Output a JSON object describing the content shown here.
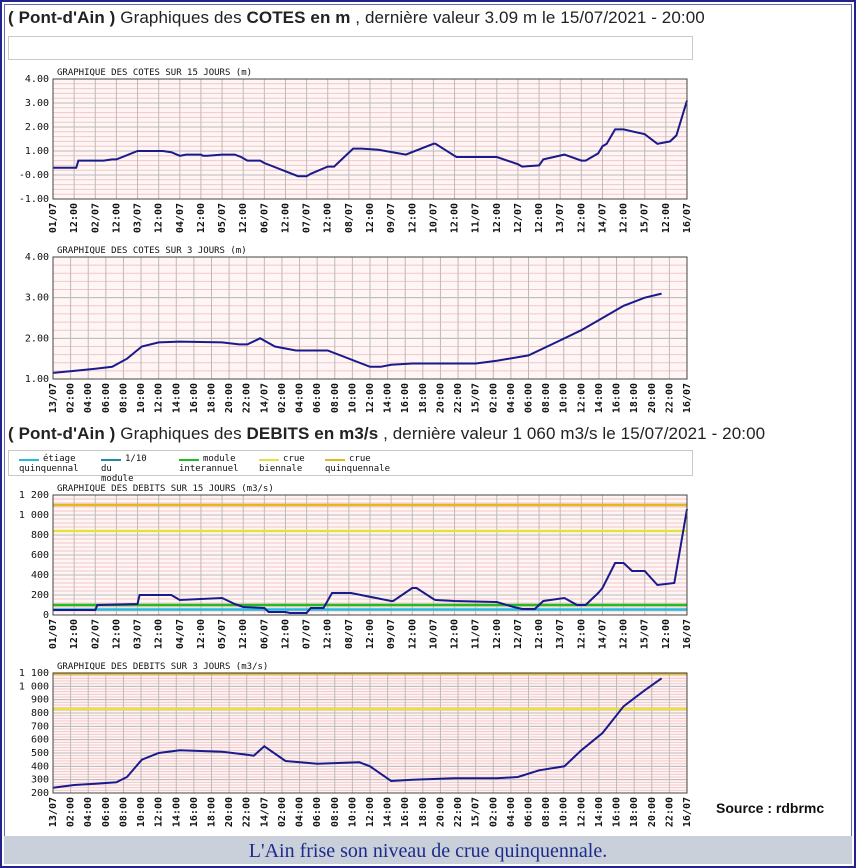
{
  "header_cotes": {
    "station": "( Pont-d'Ain )",
    "prefix": "Graphiques des",
    "quantity": "COTES en m",
    "suffix": ", dernière valeur 3.09 m le 15/07/2021 - 20:00"
  },
  "header_debits": {
    "station": "( Pont-d'Ain )",
    "prefix": "Graphiques des",
    "quantity": "DEBITS en m3/s",
    "suffix": ", dernière valeur 1 060 m3/s le 15/07/2021 - 20:00"
  },
  "legend": [
    {
      "l1": "étiage",
      "l2": "quinquennal",
      "color": "#22bbdd"
    },
    {
      "l1": "1/10",
      "l2": "du module",
      "color": "#2288aa"
    },
    {
      "l1": "module",
      "l2": "interannuel",
      "color": "#22bb22"
    },
    {
      "l1": "crue",
      "l2": "biennale",
      "color": "#e8e040"
    },
    {
      "l1": "crue",
      "l2": "quinquennale",
      "color": "#e0b820"
    }
  ],
  "source": "Source : rdbrmc",
  "caption": "L'Ain frise son niveau de crue quinquennale.",
  "colors": {
    "series": "#1a1a8c",
    "grid": "#bbbbbb",
    "frame": "#23238c"
  },
  "chart_data": [
    {
      "type": "line",
      "title": "GRAPHIQUE DES COTES SUR 15 JOURS (m)",
      "ylim": [
        -1,
        4
      ],
      "yticks": [
        -1,
        0,
        1,
        2,
        3,
        4
      ],
      "ytick_labels": [
        "-1.00",
        "-0.00",
        "1.00",
        "2.00",
        "3.00",
        "4.00"
      ],
      "xlim": [
        0,
        15
      ],
      "xtick_labels": [
        "01/07",
        "12:00",
        "02/07",
        "12:00",
        "03/07",
        "12:00",
        "04/07",
        "12:00",
        "05/07",
        "12:00",
        "06/07",
        "12:00",
        "07/07",
        "12:00",
        "08/07",
        "12:00",
        "09/07",
        "12:00",
        "10/07",
        "12:00",
        "11/07",
        "12:00",
        "12/07",
        "12:00",
        "13/07",
        "12:00",
        "14/07",
        "12:00",
        "15/07",
        "12:00",
        "16/07"
      ],
      "thresholds": [],
      "series": [
        {
          "x": [
            0,
            0.55,
            0.6,
            1.2,
            1.4,
            1.5,
            2,
            2.05,
            2.6,
            2.8,
            3,
            3.15,
            3.5,
            3.55,
            3.65,
            4,
            4.3,
            4.45,
            4.6,
            4.9,
            5,
            5.8,
            6,
            6.1,
            6.5,
            6.65,
            7.1,
            7.2,
            7.3,
            7.7,
            8.35,
            9,
            9.05,
            9.5,
            9.55,
            10.5,
            11,
            11.1,
            11.5,
            11.6,
            12.1,
            12.5,
            12.6,
            12.9,
            13,
            13.1,
            13.3,
            13.5,
            14,
            14.3,
            14.6,
            14.75,
            15
          ],
          "y": [
            0.3,
            0.3,
            0.6,
            0.6,
            0.65,
            0.65,
            1,
            1,
            1,
            0.95,
            0.8,
            0.85,
            0.85,
            0.8,
            0.8,
            0.85,
            0.85,
            0.75,
            0.6,
            0.6,
            0.5,
            -0.05,
            -0.05,
            0.05,
            0.35,
            0.35,
            1.1,
            1.1,
            1.1,
            1.05,
            0.85,
            1.3,
            1.3,
            0.8,
            0.75,
            0.75,
            0.45,
            0.35,
            0.4,
            0.65,
            0.85,
            0.6,
            0.6,
            0.9,
            1.2,
            1.3,
            1.9,
            1.9,
            1.7,
            1.3,
            1.4,
            1.65,
            3.1
          ]
        }
      ]
    },
    {
      "type": "line",
      "title": "GRAPHIQUE DES COTES SUR 3 JOURS (m)",
      "ylim": [
        1,
        4
      ],
      "yticks": [
        1,
        2,
        3,
        4
      ],
      "ytick_labels": [
        "1.00",
        "2.00",
        "3.00",
        "4.00"
      ],
      "xlim": [
        0,
        3
      ],
      "xtick_labels": [
        "13/07",
        "02:00",
        "04:00",
        "06:00",
        "08:00",
        "10:00",
        "12:00",
        "14:00",
        "16:00",
        "18:00",
        "20:00",
        "22:00",
        "14/07",
        "02:00",
        "04:00",
        "06:00",
        "08:00",
        "10:00",
        "12:00",
        "14:00",
        "16:00",
        "18:00",
        "20:00",
        "22:00",
        "15/07",
        "02:00",
        "04:00",
        "06:00",
        "08:00",
        "10:00",
        "12:00",
        "14:00",
        "16:00",
        "18:00",
        "20:00",
        "22:00",
        "16/07"
      ],
      "thresholds": [],
      "series": [
        {
          "x": [
            0,
            0.1,
            0.2,
            0.28,
            0.35,
            0.42,
            0.5,
            0.6,
            0.8,
            0.88,
            0.92,
            0.98,
            1.05,
            1.15,
            1.3,
            1.5,
            1.55,
            1.6,
            1.7,
            1.8,
            2,
            2.1,
            2.25,
            2.4,
            2.5,
            2.6,
            2.7,
            2.8,
            2.88
          ],
          "y": [
            1.15,
            1.2,
            1.25,
            1.3,
            1.5,
            1.8,
            1.9,
            1.92,
            1.9,
            1.85,
            1.85,
            2,
            1.8,
            1.7,
            1.7,
            1.3,
            1.3,
            1.35,
            1.38,
            1.38,
            1.38,
            1.45,
            1.58,
            1.95,
            2.2,
            2.5,
            2.8,
            3,
            3.1
          ]
        }
      ]
    },
    {
      "type": "line",
      "title": "GRAPHIQUE DES DEBITS SUR 15 JOURS (m3/s)",
      "ylim": [
        0,
        1200
      ],
      "yticks": [
        0,
        200,
        400,
        600,
        800,
        1000,
        1200
      ],
      "ytick_labels": [
        "0",
        "200",
        "400",
        "600",
        "800",
        "1 000",
        "1 200"
      ],
      "xlim": [
        0,
        15
      ],
      "xtick_labels": [
        "01/07",
        "12:00",
        "02/07",
        "12:00",
        "03/07",
        "12:00",
        "04/07",
        "12:00",
        "05/07",
        "12:00",
        "06/07",
        "12:00",
        "07/07",
        "12:00",
        "08/07",
        "12:00",
        "09/07",
        "12:00",
        "10/07",
        "12:00",
        "11/07",
        "12:00",
        "12/07",
        "12:00",
        "13/07",
        "12:00",
        "14/07",
        "12:00",
        "15/07",
        "12:00",
        "16/07"
      ],
      "thresholds": [
        {
          "value": 55,
          "color": "#22bbdd"
        },
        {
          "value": 100,
          "color": "#22bb22"
        },
        {
          "value": 840,
          "color": "#e8e040"
        },
        {
          "value": 1100,
          "color": "#e0b820"
        }
      ],
      "series": [
        {
          "x": [
            0,
            1,
            1.05,
            2,
            2.05,
            2.8,
            3,
            4,
            4.3,
            4.5,
            5,
            5.1,
            5.5,
            5.6,
            6,
            6.1,
            6.4,
            6.6,
            7,
            7.05,
            8,
            8.05,
            8.5,
            8.6,
            9,
            9.05,
            9.5,
            10.5,
            10.9,
            11.1,
            11.4,
            11.6,
            12.1,
            12.4,
            12.6,
            12.9,
            13,
            13.3,
            13.5,
            13.7,
            14,
            14.3,
            14.7,
            15
          ],
          "y": [
            50,
            50,
            100,
            110,
            200,
            200,
            150,
            170,
            110,
            80,
            70,
            30,
            30,
            20,
            20,
            70,
            70,
            220,
            220,
            220,
            140,
            140,
            270,
            270,
            160,
            150,
            140,
            130,
            80,
            60,
            60,
            140,
            170,
            100,
            100,
            220,
            270,
            520,
            520,
            440,
            440,
            300,
            320,
            1060
          ]
        }
      ]
    },
    {
      "type": "line",
      "title": "GRAPHIQUE DES DEBITS SUR 3 JOURS (m3/s)",
      "ylim": [
        200,
        1100
      ],
      "yticks": [
        200,
        300,
        400,
        500,
        600,
        700,
        800,
        900,
        1000,
        1100
      ],
      "ytick_labels": [
        "200",
        "300",
        "400",
        "500",
        "600",
        "700",
        "800",
        "900",
        "1 000",
        "1 100"
      ],
      "xlim": [
        0,
        3
      ],
      "xtick_labels": [
        "13/07",
        "02:00",
        "04:00",
        "06:00",
        "08:00",
        "10:00",
        "12:00",
        "14:00",
        "16:00",
        "18:00",
        "20:00",
        "22:00",
        "14/07",
        "02:00",
        "04:00",
        "06:00",
        "08:00",
        "10:00",
        "12:00",
        "14:00",
        "16:00",
        "18:00",
        "20:00",
        "22:00",
        "15/07",
        "02:00",
        "04:00",
        "06:00",
        "08:00",
        "10:00",
        "12:00",
        "14:00",
        "16:00",
        "18:00",
        "20:00",
        "22:00",
        "16/07"
      ],
      "thresholds": [
        {
          "value": 830,
          "color": "#e8e040"
        },
        {
          "value": 1095,
          "color": "#e0b820"
        }
      ],
      "series": [
        {
          "x": [
            0,
            0.1,
            0.2,
            0.3,
            0.35,
            0.42,
            0.5,
            0.6,
            0.8,
            0.9,
            0.95,
            1,
            1.1,
            1.25,
            1.45,
            1.5,
            1.6,
            1.7,
            1.9,
            2,
            2.1,
            2.2,
            2.3,
            2.42,
            2.5,
            2.6,
            2.7,
            2.8,
            2.88
          ],
          "y": [
            240,
            260,
            270,
            280,
            320,
            450,
            500,
            520,
            510,
            490,
            480,
            550,
            440,
            420,
            430,
            400,
            290,
            300,
            310,
            310,
            310,
            320,
            370,
            400,
            520,
            650,
            850,
            970,
            1060
          ]
        }
      ]
    }
  ]
}
